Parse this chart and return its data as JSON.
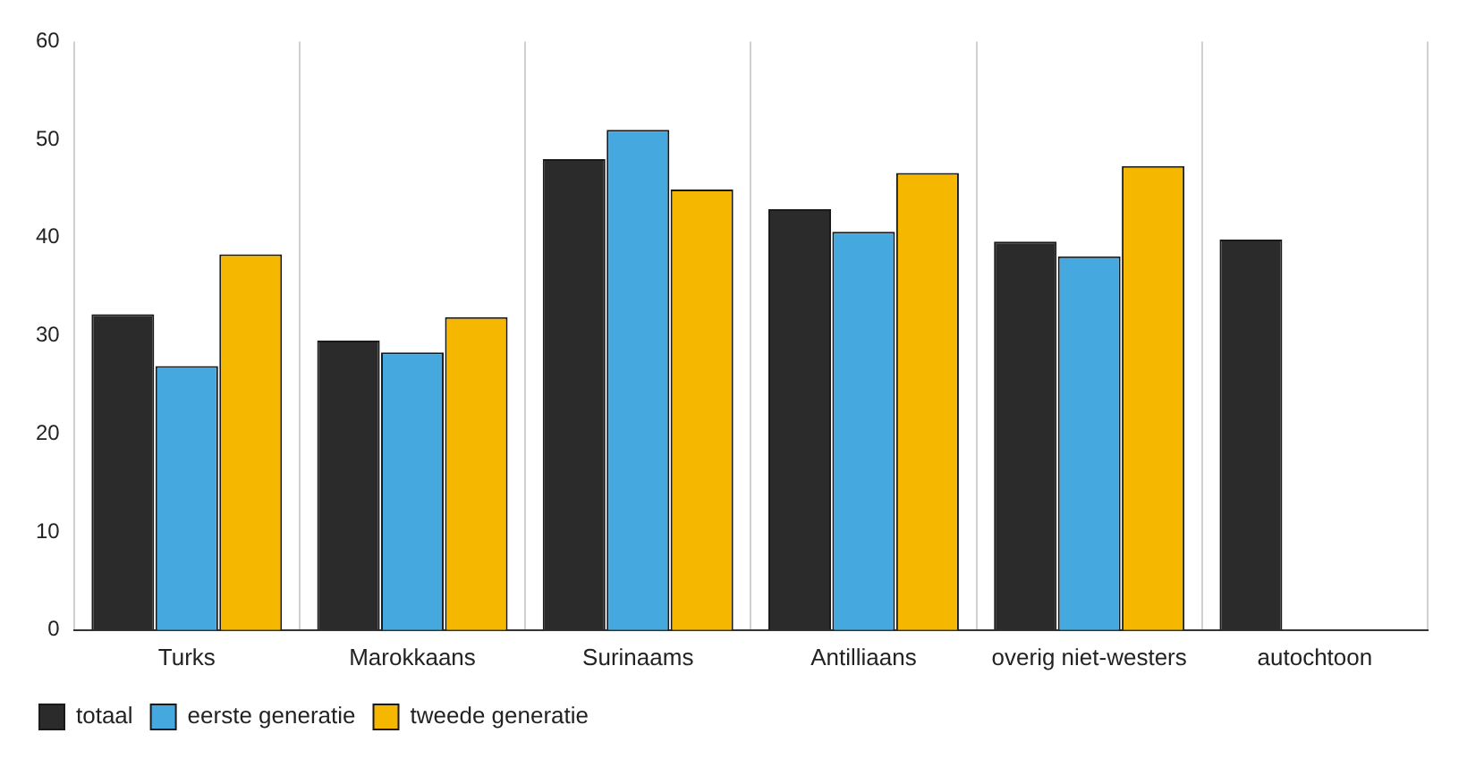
{
  "chart_data": {
    "type": "bar",
    "categories": [
      "Turks",
      "Marokkaans",
      "Surinaams",
      "Antilliaans",
      "overig niet-westers",
      "autochtoon"
    ],
    "series": [
      {
        "name": "totaal",
        "color": "#2b2b2b",
        "values": [
          32.2,
          29.5,
          48.0,
          42.9,
          39.6,
          39.8
        ]
      },
      {
        "name": "eerste generatie",
        "color": "#45a9e0",
        "values": [
          26.9,
          28.3,
          51.0,
          40.6,
          38.1,
          null
        ]
      },
      {
        "name": "tweede generatie",
        "color": "#f5b700",
        "values": [
          38.3,
          31.9,
          44.9,
          46.6,
          47.3,
          null
        ]
      }
    ],
    "ylim": [
      0,
      60
    ],
    "yticks": [
      0,
      10,
      20,
      30,
      40,
      50,
      60
    ],
    "grid": "x",
    "legend": "bottom left"
  }
}
